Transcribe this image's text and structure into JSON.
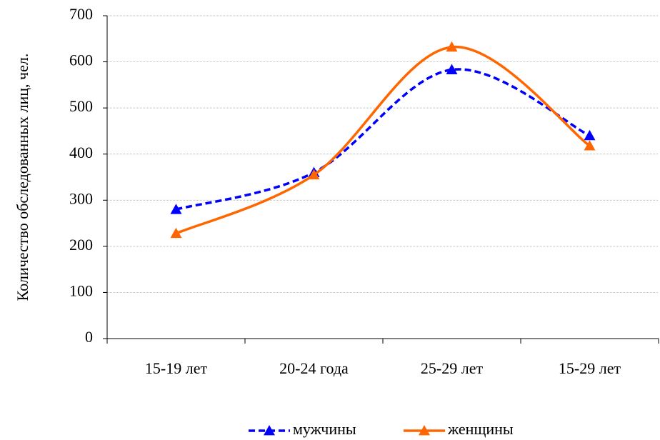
{
  "chart_data": {
    "type": "line",
    "y_label": "Количество обследованных лиц, чел.",
    "categories": [
      "15-19 лет",
      "20-24 года",
      "25-29 лет",
      "15-29 лет"
    ],
    "series": [
      {
        "name": "мужчины",
        "color": "#0000ff",
        "dashed": true,
        "values": [
          280,
          360,
          583,
          440
        ]
      },
      {
        "name": "женщины",
        "color": "#ff6600",
        "dashed": false,
        "values": [
          228,
          355,
          632,
          418
        ]
      }
    ],
    "ylim": [
      0,
      700
    ],
    "yticks": [
      0,
      100,
      200,
      300,
      400,
      500,
      600,
      700
    ],
    "grid": true,
    "smooth": true,
    "legend": "bottom"
  }
}
